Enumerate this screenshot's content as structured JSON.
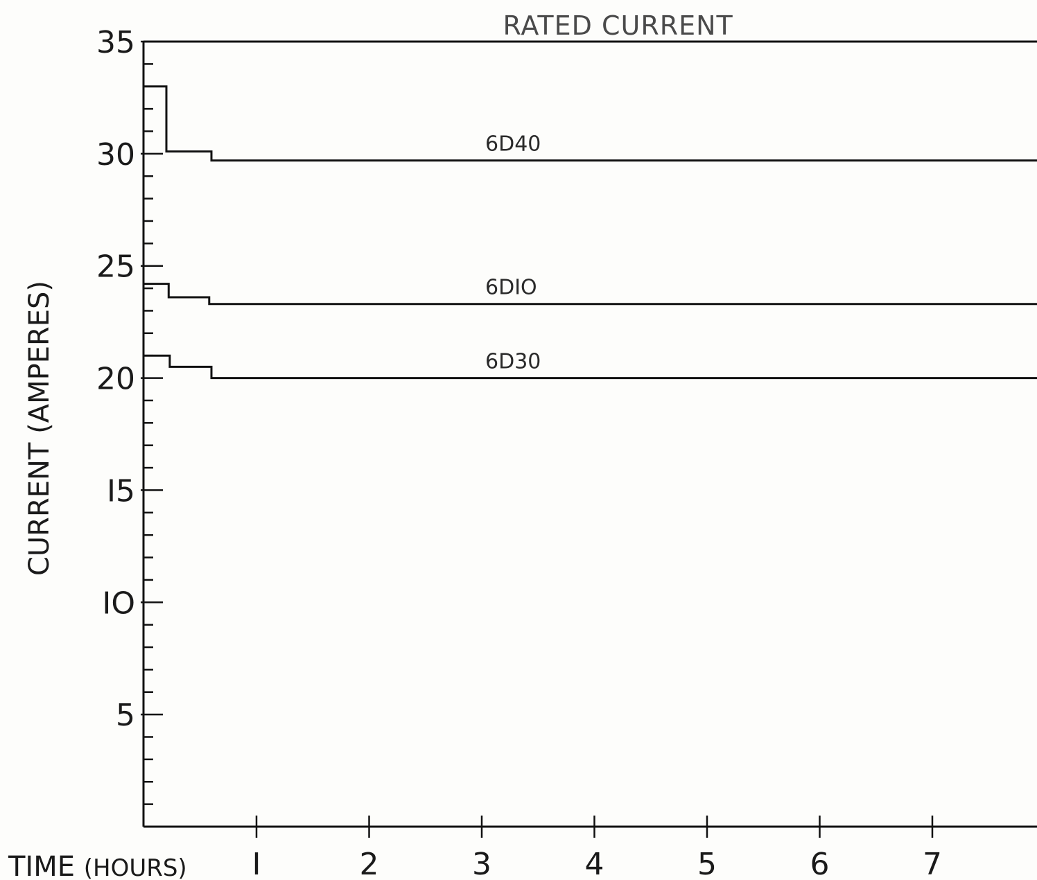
{
  "chart_data": {
    "type": "line",
    "title": "",
    "xlabel_main": "TIME",
    "xlabel_unit": "(HOURS)",
    "ylabel": "CURRENT (AMPERES)",
    "xlim": [
      0,
      8
    ],
    "ylim": [
      0,
      35
    ],
    "x_ticks": [
      1,
      2,
      3,
      4,
      5,
      6,
      7
    ],
    "x_tick_labels": [
      "I",
      "2",
      "3",
      "4",
      "5",
      "6",
      "7"
    ],
    "y_major_ticks": [
      5,
      10,
      15,
      20,
      25,
      30,
      35
    ],
    "y_tick_labels": [
      "5",
      "IO",
      "I5",
      "20",
      "25",
      "30",
      "35"
    ],
    "y_minor_step": 1,
    "grid": false,
    "series": [
      {
        "name": "6D40",
        "step": true,
        "x": [
          0,
          0.2,
          0.2,
          0.6,
          0.6,
          8
        ],
        "y": [
          33,
          33,
          30.1,
          30.1,
          29.7,
          29.7
        ]
      },
      {
        "name": "6DIO",
        "step": true,
        "x": [
          0,
          0.22,
          0.22,
          0.58,
          0.58,
          8
        ],
        "y": [
          24.2,
          24.2,
          23.6,
          23.6,
          23.3,
          23.3
        ]
      },
      {
        "name": "6D30",
        "step": true,
        "x": [
          0,
          0.23,
          0.23,
          0.6,
          0.6,
          8
        ],
        "y": [
          21,
          21,
          20.5,
          20.5,
          20,
          20
        ]
      }
    ],
    "annotations": [
      {
        "text": "RATED CURRENT",
        "at_x": 3.2,
        "at_y": 35,
        "line_y": 35
      }
    ]
  }
}
